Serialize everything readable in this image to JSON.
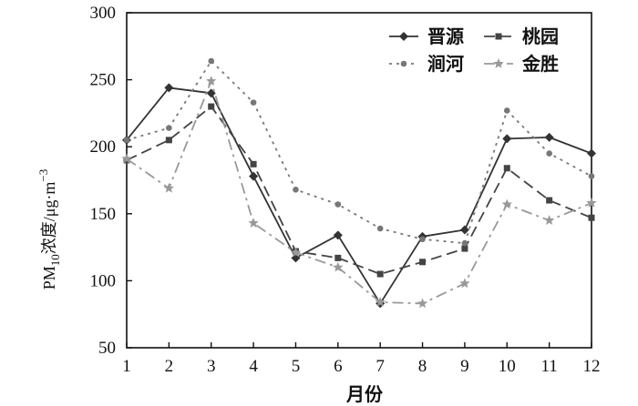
{
  "chart_data": {
    "type": "line",
    "xlabel": "月份",
    "ylabel": {
      "prefix": "PM",
      "subscript": "10",
      "text": "浓度/μg·m",
      "superscript": "−3"
    },
    "x": [
      1,
      2,
      3,
      4,
      5,
      6,
      7,
      8,
      9,
      10,
      11,
      12
    ],
    "xlim": [
      1,
      12
    ],
    "ylim": [
      50,
      300
    ],
    "yticks": [
      50,
      100,
      150,
      200,
      250,
      300
    ],
    "grid": false,
    "legend_position": "top-right",
    "series": [
      {
        "name": "晋源",
        "style": "solid",
        "marker": "diamond",
        "color": "#333333",
        "values": [
          205,
          244,
          240,
          178,
          117,
          134,
          83,
          133,
          138,
          206,
          207,
          195
        ]
      },
      {
        "name": "桃园",
        "style": "dash",
        "marker": "square",
        "color": "#444444",
        "values": [
          190,
          205,
          230,
          187,
          122,
          117,
          105,
          114,
          124,
          184,
          160,
          147
        ]
      },
      {
        "name": "涧河",
        "style": "dot",
        "marker": "circle",
        "color": "#777777",
        "values": [
          205,
          214,
          264,
          233,
          168,
          157,
          139,
          131,
          128,
          227,
          195,
          178
        ]
      },
      {
        "name": "金胜",
        "style": "dashdot",
        "marker": "star",
        "color": "#999999",
        "values": [
          191,
          169,
          249,
          143,
          121,
          110,
          84,
          83,
          98,
          157,
          145,
          158
        ]
      }
    ]
  }
}
